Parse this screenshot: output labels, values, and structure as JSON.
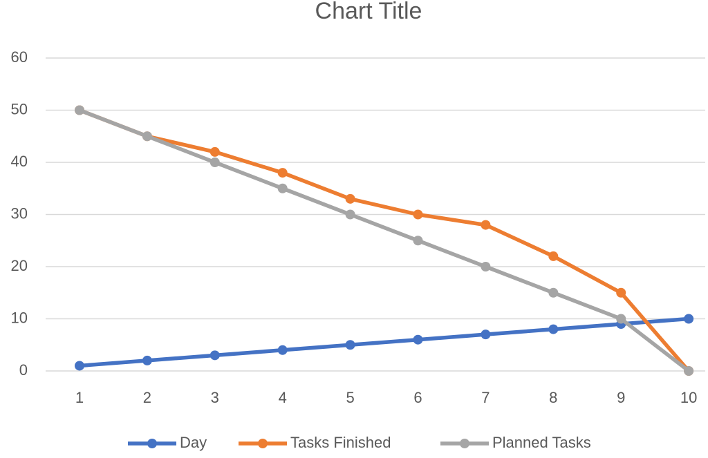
{
  "chart_data": {
    "type": "line",
    "title": "Chart Title",
    "categories": [
      "1",
      "2",
      "3",
      "4",
      "5",
      "6",
      "7",
      "8",
      "9",
      "10"
    ],
    "series": [
      {
        "name": "Day",
        "color": "#4472c4",
        "values": [
          1,
          2,
          3,
          4,
          5,
          6,
          7,
          8,
          9,
          10
        ]
      },
      {
        "name": "Tasks Finished",
        "color": "#ed7d31",
        "values": [
          50,
          45,
          42,
          38,
          33,
          30,
          28,
          22,
          15,
          0
        ]
      },
      {
        "name": "Planned Tasks",
        "color": "#a5a5a5",
        "values": [
          50,
          45,
          40,
          35,
          30,
          25,
          20,
          15,
          10,
          0
        ]
      }
    ],
    "ylim": [
      0,
      60
    ],
    "yticks": [
      0,
      10,
      20,
      30,
      40,
      50,
      60
    ],
    "grid": true,
    "legend": "bottom"
  }
}
